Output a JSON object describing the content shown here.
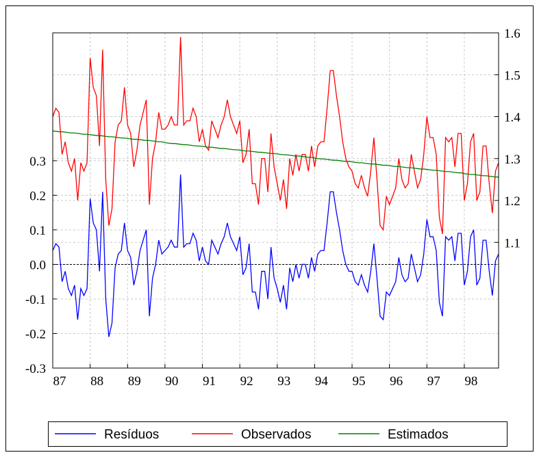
{
  "chart_data": {
    "type": "line",
    "categories": [
      "87",
      null,
      null,
      null,
      null,
      null,
      null,
      null,
      null,
      null,
      null,
      null,
      "88",
      null,
      null,
      null,
      null,
      null,
      null,
      null,
      null,
      null,
      null,
      null,
      "89",
      null,
      null,
      null,
      null,
      null,
      null,
      null,
      null,
      null,
      null,
      null,
      "90",
      null,
      null,
      null,
      null,
      null,
      null,
      null,
      null,
      null,
      null,
      null,
      "91",
      null,
      null,
      null,
      null,
      null,
      null,
      null,
      null,
      null,
      null,
      null,
      "92",
      null,
      null,
      null,
      null,
      null,
      null,
      null,
      null,
      null,
      null,
      null,
      "93",
      null,
      null,
      null,
      null,
      null,
      null,
      null,
      null,
      null,
      null,
      null,
      "94",
      null,
      null,
      null,
      null,
      null,
      null,
      null,
      null,
      null,
      null,
      null,
      "95",
      null,
      null,
      null,
      null,
      null,
      null,
      null,
      null,
      null,
      null,
      null,
      "96",
      null,
      null,
      null,
      null,
      null,
      null,
      null,
      null,
      null,
      null,
      null,
      "97",
      null,
      null,
      null,
      null,
      null,
      null,
      null,
      null,
      null,
      null,
      null,
      "98",
      null,
      null,
      null,
      null,
      null,
      null,
      null,
      null,
      null,
      null,
      null
    ],
    "series": [
      {
        "name": "Resíduos",
        "color": "#0000ff",
        "axis": "y",
        "values": [
          0.04,
          0.06,
          0.05,
          -0.05,
          -0.02,
          -0.07,
          -0.09,
          -0.06,
          -0.16,
          -0.07,
          -0.09,
          -0.07,
          0.19,
          0.12,
          0.1,
          -0.02,
          0.21,
          -0.1,
          -0.21,
          -0.17,
          -0.01,
          0.03,
          0.04,
          0.12,
          0.04,
          0.02,
          -0.06,
          -0.02,
          0.04,
          0.07,
          0.1,
          -0.15,
          -0.04,
          0.0,
          0.07,
          0.03,
          0.04,
          0.05,
          0.07,
          0.05,
          0.05,
          0.26,
          0.05,
          0.06,
          0.06,
          0.09,
          0.07,
          0.01,
          0.05,
          0.01,
          0.0,
          0.07,
          0.05,
          0.03,
          0.06,
          0.08,
          0.12,
          0.08,
          0.06,
          0.04,
          0.08,
          -0.03,
          -0.01,
          0.06,
          -0.08,
          -0.08,
          -0.13,
          -0.02,
          -0.02,
          -0.1,
          0.05,
          -0.04,
          -0.07,
          -0.11,
          -0.06,
          -0.13,
          -0.01,
          -0.05,
          0.0,
          -0.04,
          0.0,
          0.0,
          -0.04,
          0.02,
          -0.02,
          0.03,
          0.04,
          0.04,
          0.12,
          0.21,
          0.21,
          0.15,
          0.1,
          0.04,
          0.0,
          -0.02,
          -0.02,
          -0.05,
          -0.06,
          -0.03,
          -0.06,
          -0.08,
          -0.02,
          0.06,
          -0.04,
          -0.15,
          -0.16,
          -0.08,
          -0.09,
          -0.07,
          -0.05,
          0.02,
          -0.03,
          -0.05,
          -0.04,
          0.03,
          -0.01,
          -0.05,
          -0.03,
          0.03,
          0.13,
          0.08,
          0.08,
          0.04,
          -0.11,
          -0.15,
          0.08,
          0.07,
          0.08,
          0.01,
          0.09,
          0.09,
          -0.06,
          -0.02,
          0.08,
          0.1,
          -0.06,
          -0.04,
          0.07,
          0.07,
          -0.02,
          -0.09,
          0.01,
          0.03
        ]
      },
      {
        "name": "Observados",
        "color": "#ff0000",
        "axis": "y2",
        "values": [
          1.4,
          1.42,
          1.41,
          1.31,
          1.34,
          1.29,
          1.27,
          1.3,
          1.2,
          1.29,
          1.27,
          1.29,
          1.54,
          1.47,
          1.45,
          1.33,
          1.56,
          1.25,
          1.14,
          1.18,
          1.34,
          1.38,
          1.39,
          1.47,
          1.38,
          1.36,
          1.28,
          1.32,
          1.38,
          1.41,
          1.44,
          1.19,
          1.3,
          1.34,
          1.41,
          1.37,
          1.37,
          1.38,
          1.4,
          1.38,
          1.38,
          1.59,
          1.38,
          1.39,
          1.39,
          1.42,
          1.4,
          1.34,
          1.37,
          1.33,
          1.32,
          1.39,
          1.37,
          1.35,
          1.38,
          1.4,
          1.44,
          1.4,
          1.38,
          1.36,
          1.39,
          1.29,
          1.31,
          1.37,
          1.24,
          1.24,
          1.19,
          1.3,
          1.3,
          1.22,
          1.36,
          1.28,
          1.24,
          1.2,
          1.25,
          1.18,
          1.3,
          1.26,
          1.31,
          1.27,
          1.31,
          1.31,
          1.27,
          1.33,
          1.28,
          1.33,
          1.34,
          1.34,
          1.42,
          1.51,
          1.51,
          1.45,
          1.4,
          1.34,
          1.3,
          1.28,
          1.27,
          1.24,
          1.23,
          1.26,
          1.23,
          1.21,
          1.27,
          1.35,
          1.25,
          1.14,
          1.13,
          1.21,
          1.19,
          1.21,
          1.23,
          1.3,
          1.25,
          1.23,
          1.24,
          1.31,
          1.27,
          1.23,
          1.25,
          1.31,
          1.4,
          1.35,
          1.35,
          1.31,
          1.16,
          1.12,
          1.35,
          1.34,
          1.35,
          1.28,
          1.36,
          1.36,
          1.2,
          1.24,
          1.34,
          1.36,
          1.2,
          1.22,
          1.33,
          1.33,
          1.24,
          1.17,
          1.27,
          1.29
        ]
      },
      {
        "name": "Estimados",
        "color": "#008000",
        "axis": "y2",
        "values": [
          1.366,
          1.365,
          1.364,
          1.364,
          1.363,
          1.362,
          1.361,
          1.361,
          1.36,
          1.359,
          1.358,
          1.358,
          1.357,
          1.356,
          1.355,
          1.355,
          1.354,
          1.353,
          1.352,
          1.352,
          1.351,
          1.35,
          1.349,
          1.349,
          1.348,
          1.347,
          1.346,
          1.346,
          1.345,
          1.344,
          1.343,
          1.343,
          1.342,
          1.341,
          1.34,
          1.34,
          1.338,
          1.337,
          1.336,
          1.336,
          1.335,
          1.334,
          1.333,
          1.333,
          1.332,
          1.331,
          1.33,
          1.33,
          1.329,
          1.328,
          1.327,
          1.327,
          1.326,
          1.325,
          1.324,
          1.324,
          1.323,
          1.322,
          1.321,
          1.321,
          1.32,
          1.319,
          1.318,
          1.318,
          1.317,
          1.316,
          1.315,
          1.315,
          1.314,
          1.313,
          1.312,
          1.312,
          1.311,
          1.31,
          1.309,
          1.309,
          1.308,
          1.307,
          1.306,
          1.306,
          1.305,
          1.304,
          1.303,
          1.303,
          1.301,
          1.3,
          1.299,
          1.299,
          1.298,
          1.297,
          1.296,
          1.296,
          1.295,
          1.294,
          1.293,
          1.293,
          1.292,
          1.291,
          1.29,
          1.29,
          1.289,
          1.288,
          1.287,
          1.287,
          1.286,
          1.285,
          1.284,
          1.284,
          1.283,
          1.282,
          1.281,
          1.281,
          1.28,
          1.279,
          1.278,
          1.278,
          1.277,
          1.276,
          1.275,
          1.275,
          1.274,
          1.273,
          1.272,
          1.272,
          1.271,
          1.27,
          1.269,
          1.269,
          1.268,
          1.267,
          1.266,
          1.266,
          1.264,
          1.263,
          1.262,
          1.262,
          1.261,
          1.26,
          1.259,
          1.259,
          1.258,
          1.257,
          1.256,
          1.256
        ]
      }
    ],
    "ylim": [
      -0.3,
      0.67
    ],
    "yticks": [
      -0.3,
      -0.2,
      -0.1,
      {
        "value": 0,
        "label": "0.0"
      },
      0.1,
      0.2,
      0.3
    ],
    "y2lim": [
      0.8,
      1.6
    ],
    "y2ticks": [
      1.1,
      1.2,
      1.3,
      1.4,
      1.5,
      1.6
    ],
    "grid": true,
    "zero_line": true,
    "legend": "bottom"
  }
}
